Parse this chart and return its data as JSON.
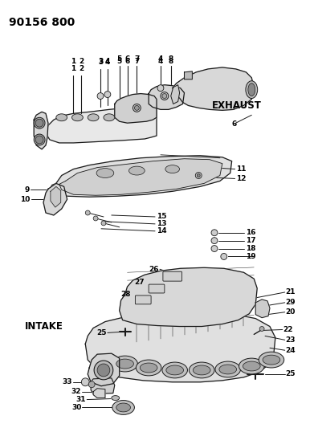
{
  "title": "90156 800",
  "bg_color": "#ffffff",
  "title_fontsize": 10,
  "title_weight": "bold",
  "exhaust_label": "EXHAUST",
  "intake_label": "INTAKE",
  "line_color": "#1a1a1a",
  "text_color": "#000000",
  "figsize": [
    3.91,
    5.33
  ],
  "dpi": 100,
  "fs_label": 7.5,
  "fs_num": 6.5
}
